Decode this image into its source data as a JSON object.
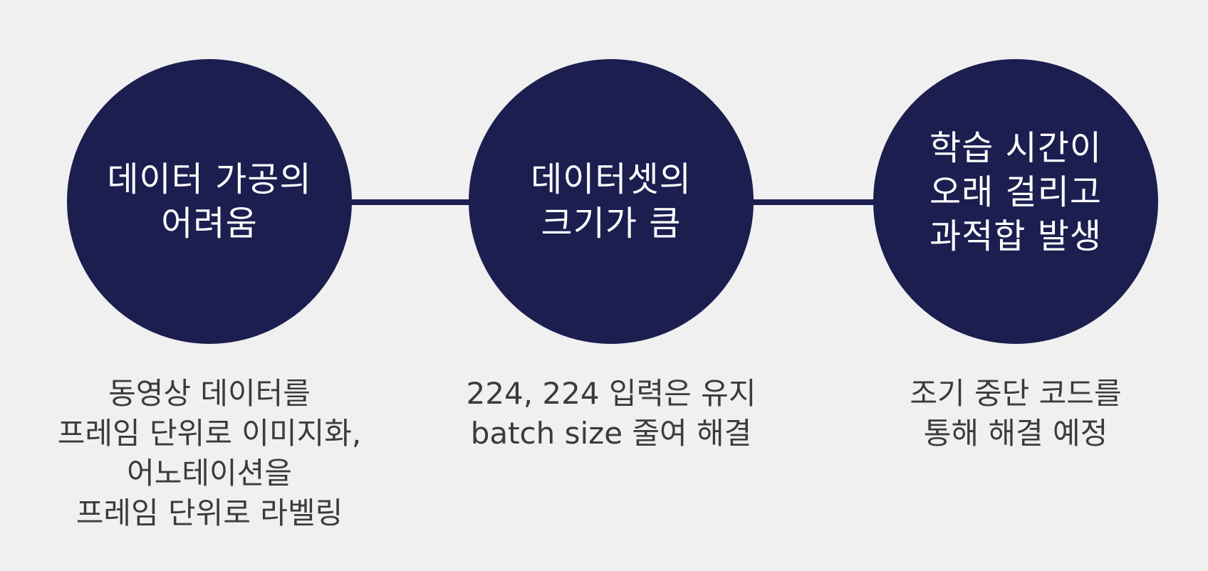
{
  "steps": [
    {
      "title": "데이터 가공의\n어려움",
      "description": "동영상 데이터를\n프레임 단위로 이미지화,\n어노테이션을\n 프레임 단위로 라벨링"
    },
    {
      "title": "데이터셋의\n크기가 큼",
      "description": "224, 224 입력은 유지\n batch size 줄여 해결"
    },
    {
      "title": "학습 시간이\n오래 걸리고\n과적합 발생",
      "description": "조기 중단 코드를\n통해 해결 예정"
    }
  ],
  "colors": {
    "background": "#f0f0f0",
    "circle_fill": "#1b1e4f",
    "connector": "#1b1e4f",
    "title_text": "#ffffff",
    "description_text": "#3b3b3b"
  }
}
